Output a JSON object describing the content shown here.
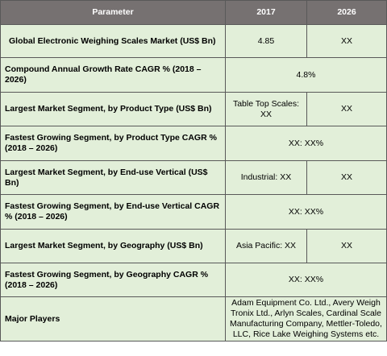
{
  "table": {
    "headers": [
      "Parameter",
      "2017",
      "2026"
    ],
    "rows": [
      {
        "parameter": "Global Electronic Weighing Scales Market (US$ Bn)",
        "v2017": "4.85",
        "v2026": "XX"
      },
      {
        "parameter": "Compound Annual Growth Rate CAGR % (2018 – 2026)",
        "merged": "4.8%"
      },
      {
        "parameter": "Largest Market Segment, by Product Type (US$ Bn)",
        "v2017": "Table Top Scales: XX",
        "v2026": "XX"
      },
      {
        "parameter": "Fastest Growing Segment, by Product Type CAGR % (2018 – 2026)",
        "merged": "XX: XX%"
      },
      {
        "parameter": "Largest Market Segment, by End-use Vertical (US$ Bn)",
        "v2017": "Industrial: XX",
        "v2026": "XX"
      },
      {
        "parameter": "Fastest Growing Segment, by End-use Vertical CAGR % (2018 – 2026)",
        "merged": "XX: XX%"
      },
      {
        "parameter": "Largest Market Segment, by Geography (US$ Bn)",
        "v2017": "Asia Pacific: XX",
        "v2026": "XX"
      },
      {
        "parameter": "Fastest Growing Segment, by Geography CAGR % (2018 – 2026)",
        "merged": "XX: XX%"
      },
      {
        "parameter": "Major Players",
        "merged": "Adam Equipment Co. Ltd., Avery Weigh Tronix Ltd., Arlyn Scales, Cardinal Scale Manufacturing Company, Mettler-Toledo, LLC, Rice Lake Weighing Systems etc."
      }
    ]
  },
  "colors": {
    "header_bg": "#767171",
    "cell_bg": "#e2efd9",
    "border": "#595959"
  }
}
